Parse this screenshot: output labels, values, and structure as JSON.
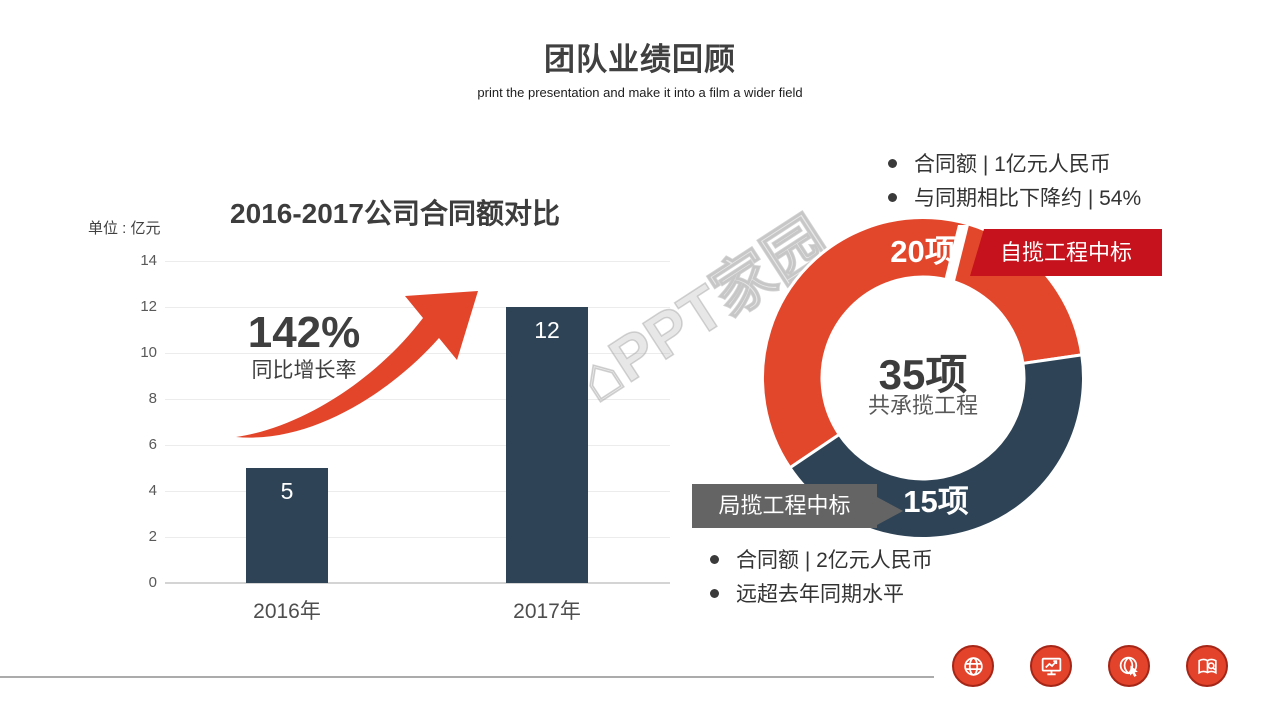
{
  "header": {
    "title": "团队业绩回顾",
    "subtitle": "print the presentation and make it into a film a wider field"
  },
  "bar_section": {
    "unit_label": "单位 : 亿元",
    "chart_title": "2016-2017公司合同额对比",
    "growth": {
      "value": "142%",
      "label": "同比增长率"
    }
  },
  "chart_data": [
    {
      "type": "bar",
      "title": "2016-2017公司合同额对比",
      "ylabel": "单位 : 亿元",
      "categories": [
        "2016年",
        "2017年"
      ],
      "values": [
        5,
        12
      ],
      "ylim": [
        0,
        14
      ],
      "ytick_step": 2,
      "grid": true,
      "bar_color": "#2e4456",
      "annotation": "142% 同比增长率"
    },
    {
      "type": "donut",
      "series": [
        {
          "name": "自揽工程中标",
          "value": 20,
          "label": "20项",
          "color": "#e2472b"
        },
        {
          "name": "局揽工程中标",
          "value": 15,
          "label": "15项",
          "color": "#2e4456"
        }
      ],
      "total_label": {
        "value": "35项",
        "caption": "共承揽工程"
      },
      "start_angle_deg": 236,
      "legend_position": "callout-tags"
    }
  ],
  "donut_section": {
    "top_bullets": [
      "合同额 | 1亿元人民币",
      "与同期相比下降约 | 54%"
    ],
    "red_tag": {
      "count": "20项",
      "label": "自揽工程中标"
    },
    "gray_tag": {
      "count": "15项",
      "label": "局揽工程中标"
    },
    "center_value": "35项",
    "center_label": "共承揽工程",
    "bottom_bullets": [
      "合同额 | 2亿元人民币",
      "远超去年同期水平"
    ]
  },
  "watermark": {
    "text": "⌂PPT家园"
  },
  "footer": {
    "icons": [
      {
        "name": "globe-icon"
      },
      {
        "name": "monitor-chart-icon"
      },
      {
        "name": "globe-cursor-icon"
      },
      {
        "name": "book-search-icon"
      }
    ]
  },
  "colors": {
    "accent_red": "#e2472b",
    "deep_red": "#c5121c",
    "navy": "#2e4456",
    "tag_gray": "#646464",
    "text_dark": "#3d3d3d",
    "text_mid": "#595959",
    "grid": "#ececec"
  }
}
